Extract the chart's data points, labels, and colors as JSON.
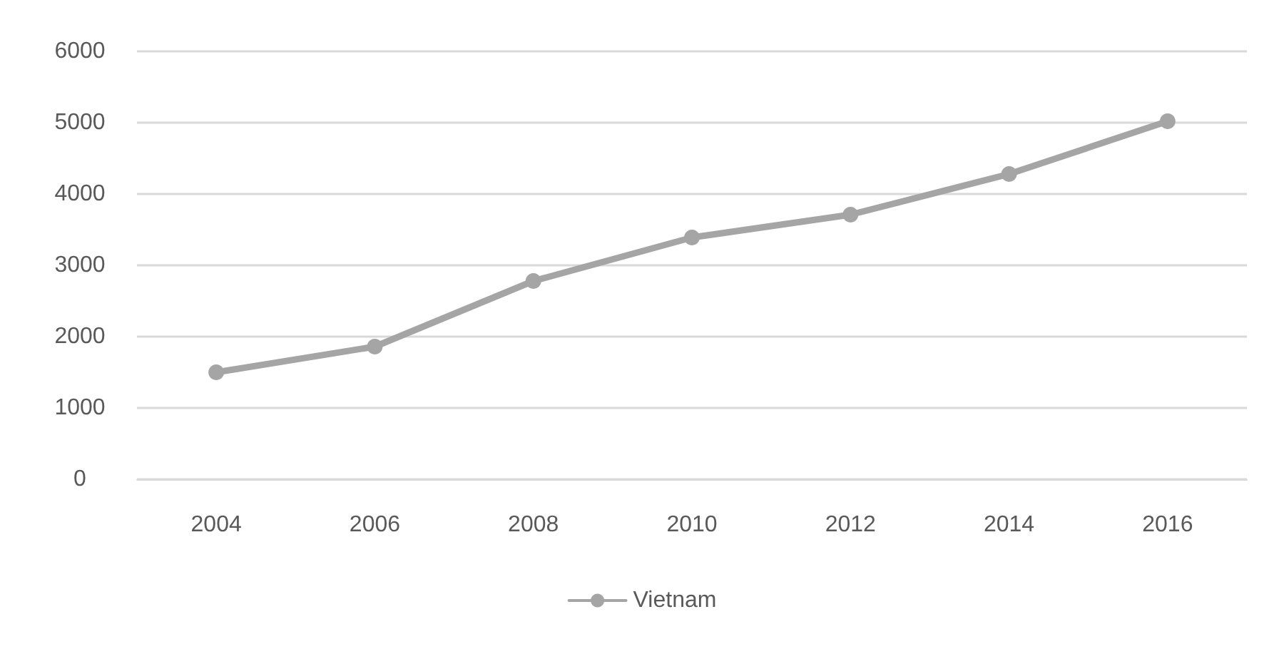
{
  "chart_data": {
    "type": "line",
    "categories": [
      "2004",
      "2006",
      "2008",
      "2010",
      "2012",
      "2014",
      "2016"
    ],
    "series": [
      {
        "name": "Vietnam",
        "color": "#a5a5a5",
        "values": [
          1500,
          1860,
          2780,
          3390,
          3710,
          4280,
          5020
        ]
      }
    ],
    "ylim": [
      0,
      6000
    ],
    "yticks": [
      0,
      1000,
      2000,
      3000,
      4000,
      5000,
      6000
    ],
    "grid": "y",
    "legend": "bottom",
    "marker": "circle",
    "line_style": "solid"
  }
}
